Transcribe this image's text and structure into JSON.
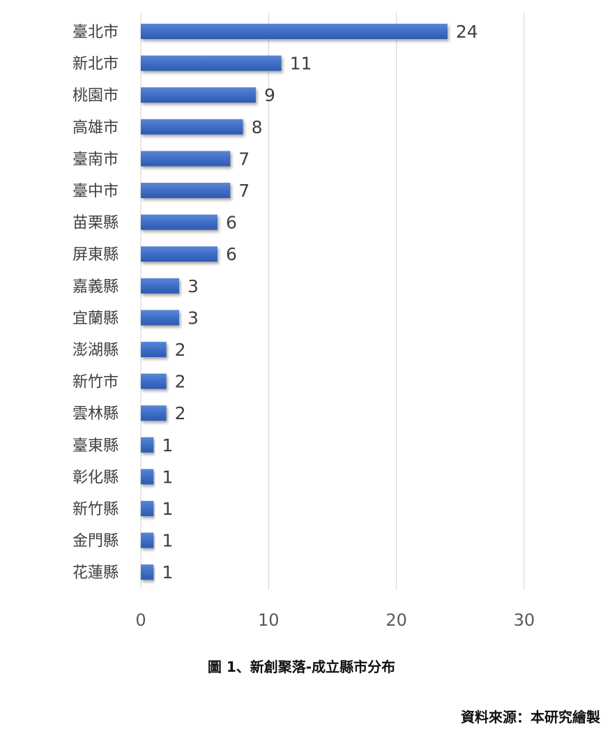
{
  "chart_data": {
    "type": "bar",
    "orientation": "horizontal",
    "categories": [
      "臺北市",
      "新北市",
      "桃園市",
      "高雄市",
      "臺南市",
      "臺中市",
      "苗栗縣",
      "屏東縣",
      "嘉義縣",
      "宜蘭縣",
      "澎湖縣",
      "新竹市",
      "雲林縣",
      "臺東縣",
      "彰化縣",
      "新竹縣",
      "金門縣",
      "花蓮縣"
    ],
    "values": [
      24,
      11,
      9,
      8,
      7,
      7,
      6,
      6,
      3,
      3,
      2,
      2,
      2,
      1,
      1,
      1,
      1,
      1
    ],
    "xlim": [
      0,
      30
    ],
    "xticks": [
      0,
      10,
      20,
      30
    ],
    "grid": true,
    "legend": "none",
    "bar_color": "#4472C4"
  },
  "caption": "圖 1、新創聚落-成立縣市分布",
  "source": "資料來源：本研究繪製"
}
